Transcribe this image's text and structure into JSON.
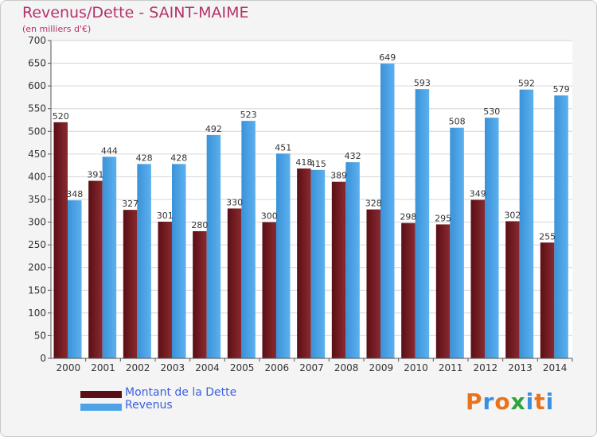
{
  "chart_data": {
    "type": "bar",
    "title": "Revenus/Dette - SAINT-MAIME",
    "subtitle": "(en milliers d'€)",
    "categories": [
      "2000",
      "2001",
      "2002",
      "2003",
      "2004",
      "2005",
      "2006",
      "2007",
      "2008",
      "2009",
      "2010",
      "2011",
      "2012",
      "2013",
      "2014"
    ],
    "series": [
      {
        "name": "Montant de la Dette",
        "color": "#7a1f24",
        "values": [
          520,
          391,
          327,
          301,
          280,
          330,
          300,
          418,
          389,
          328,
          298,
          295,
          349,
          302,
          255
        ]
      },
      {
        "name": "Revenus",
        "color": "#4da3e6",
        "values": [
          348,
          444,
          428,
          428,
          492,
          523,
          451,
          415,
          432,
          649,
          593,
          508,
          530,
          592,
          579
        ]
      }
    ],
    "value_labels": [
      [
        "520",
        "391",
        "327",
        "301",
        "280",
        "330",
        "300",
        "418",
        "389",
        "328",
        "298",
        "295",
        "349",
        "302",
        "255"
      ],
      [
        "348",
        "444",
        "428",
        "428",
        "492",
        "523",
        "451",
        "415",
        "432",
        "649",
        "593",
        "508",
        "530",
        "592",
        "579"
      ]
    ],
    "yticks": [
      "0",
      "50",
      "100",
      "150",
      "200",
      "250",
      "300",
      "350",
      "400",
      "450",
      "500",
      "550",
      "600",
      "650",
      "700"
    ],
    "ylim": [
      0,
      700
    ],
    "grid": true,
    "legend_position": "bottom-left"
  },
  "logo": {
    "letters": [
      "P",
      "r",
      "o",
      "x",
      "i",
      "t",
      "i"
    ],
    "colors": [
      "#e8731c",
      "#3b8fe0",
      "#e8731c",
      "#2fa33c",
      "#3b8fe0",
      "#e8731c",
      "#3b8fe0"
    ]
  }
}
